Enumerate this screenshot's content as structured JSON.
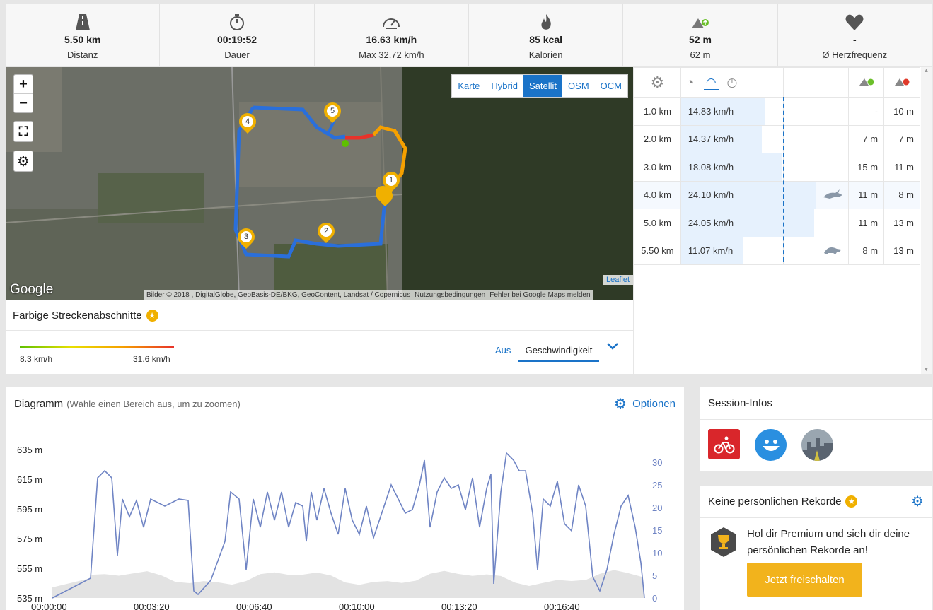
{
  "stats": [
    {
      "icon": "road-icon",
      "value": "5.50 km",
      "label": "Distanz"
    },
    {
      "icon": "stopwatch-icon",
      "value": "00:19:52",
      "label": "Dauer"
    },
    {
      "icon": "speedometer-icon",
      "value": "16.63 km/h",
      "label": "Max 32.72 km/h"
    },
    {
      "icon": "flame-icon",
      "value": "85 kcal",
      "label": "Kalorien"
    },
    {
      "icon": "ascent-icon",
      "value": "52 m",
      "label": "62 m"
    },
    {
      "icon": "heart-icon",
      "value": "-",
      "label": "Ø Herzfrequenz"
    }
  ],
  "map": {
    "types": [
      "Karte",
      "Hybrid",
      "Satellit",
      "OSM",
      "OCM"
    ],
    "active_type": "Satellit",
    "zoom_in": "+",
    "zoom_out": "−",
    "markers": [
      "1",
      "2",
      "3",
      "4",
      "5"
    ],
    "attribution": [
      "Bilder © 2018 , DigitalGlobe, GeoBasis-DE/BKG, GeoContent, Landsat / Copernicus",
      "Nutzungsbedingungen",
      "Fehler bei Google Maps melden"
    ],
    "leaflet": "Leaflet",
    "google": "Google"
  },
  "segments": {
    "title": "Farbige Streckenabschnitte",
    "min": "8.3 km/h",
    "max": "31.6 km/h",
    "off": "Aus",
    "mode": "Geschwindigkeit"
  },
  "splits": {
    "rows": [
      {
        "dist": "1.0 km",
        "speed": "14.83 km/h",
        "frac": 0.62,
        "icon": "",
        "up": "-",
        "down": "10 m"
      },
      {
        "dist": "2.0 km",
        "speed": "14.37 km/h",
        "frac": 0.6,
        "icon": "",
        "up": "7 m",
        "down": "7 m"
      },
      {
        "dist": "3.0 km",
        "speed": "18.08 km/h",
        "frac": 0.75,
        "icon": "",
        "up": "15 m",
        "down": "11 m"
      },
      {
        "dist": "4.0 km",
        "speed": "24.10 km/h",
        "frac": 1.0,
        "icon": "rabbit-icon",
        "up": "11 m",
        "down": "8 m"
      },
      {
        "dist": "5.0 km",
        "speed": "24.05 km/h",
        "frac": 0.99,
        "icon": "",
        "up": "11 m",
        "down": "13 m"
      },
      {
        "dist": "5.50 km",
        "speed": "11.07 km/h",
        "frac": 0.46,
        "icon": "turtle-icon",
        "up": "8 m",
        "down": "13 m"
      }
    ]
  },
  "diagram": {
    "title": "Diagramm",
    "hint": "(Wähle einen Bereich aus, um zu zoomen)",
    "options": "Optionen"
  },
  "chart_data": {
    "type": "line",
    "y_left_ticks": [
      "635 m",
      "615 m",
      "595 m",
      "575 m",
      "555 m",
      "535 m"
    ],
    "y_right_ticks": [
      "30",
      "25",
      "20",
      "15",
      "10",
      "5",
      "0"
    ],
    "x_ticks": [
      "00:00:00",
      "00:03:20",
      "00:06:40",
      "00:10:00",
      "00:13:20",
      "00:16:40"
    ],
    "ylim_left": [
      535,
      635
    ],
    "ylim_right": [
      0,
      30
    ],
    "series": []
  },
  "session": {
    "title": "Session-Infos"
  },
  "records": {
    "title": "Keine persönlichen Rekorde",
    "text": "Hol dir Premium und sieh dir deine persönlichen Rekorde an!",
    "button": "Jetzt freischalten"
  },
  "colors": {
    "accent": "#1a73c8",
    "button": "#f2b31c",
    "route": "#2a6fdb",
    "marker": "#f0b000"
  }
}
